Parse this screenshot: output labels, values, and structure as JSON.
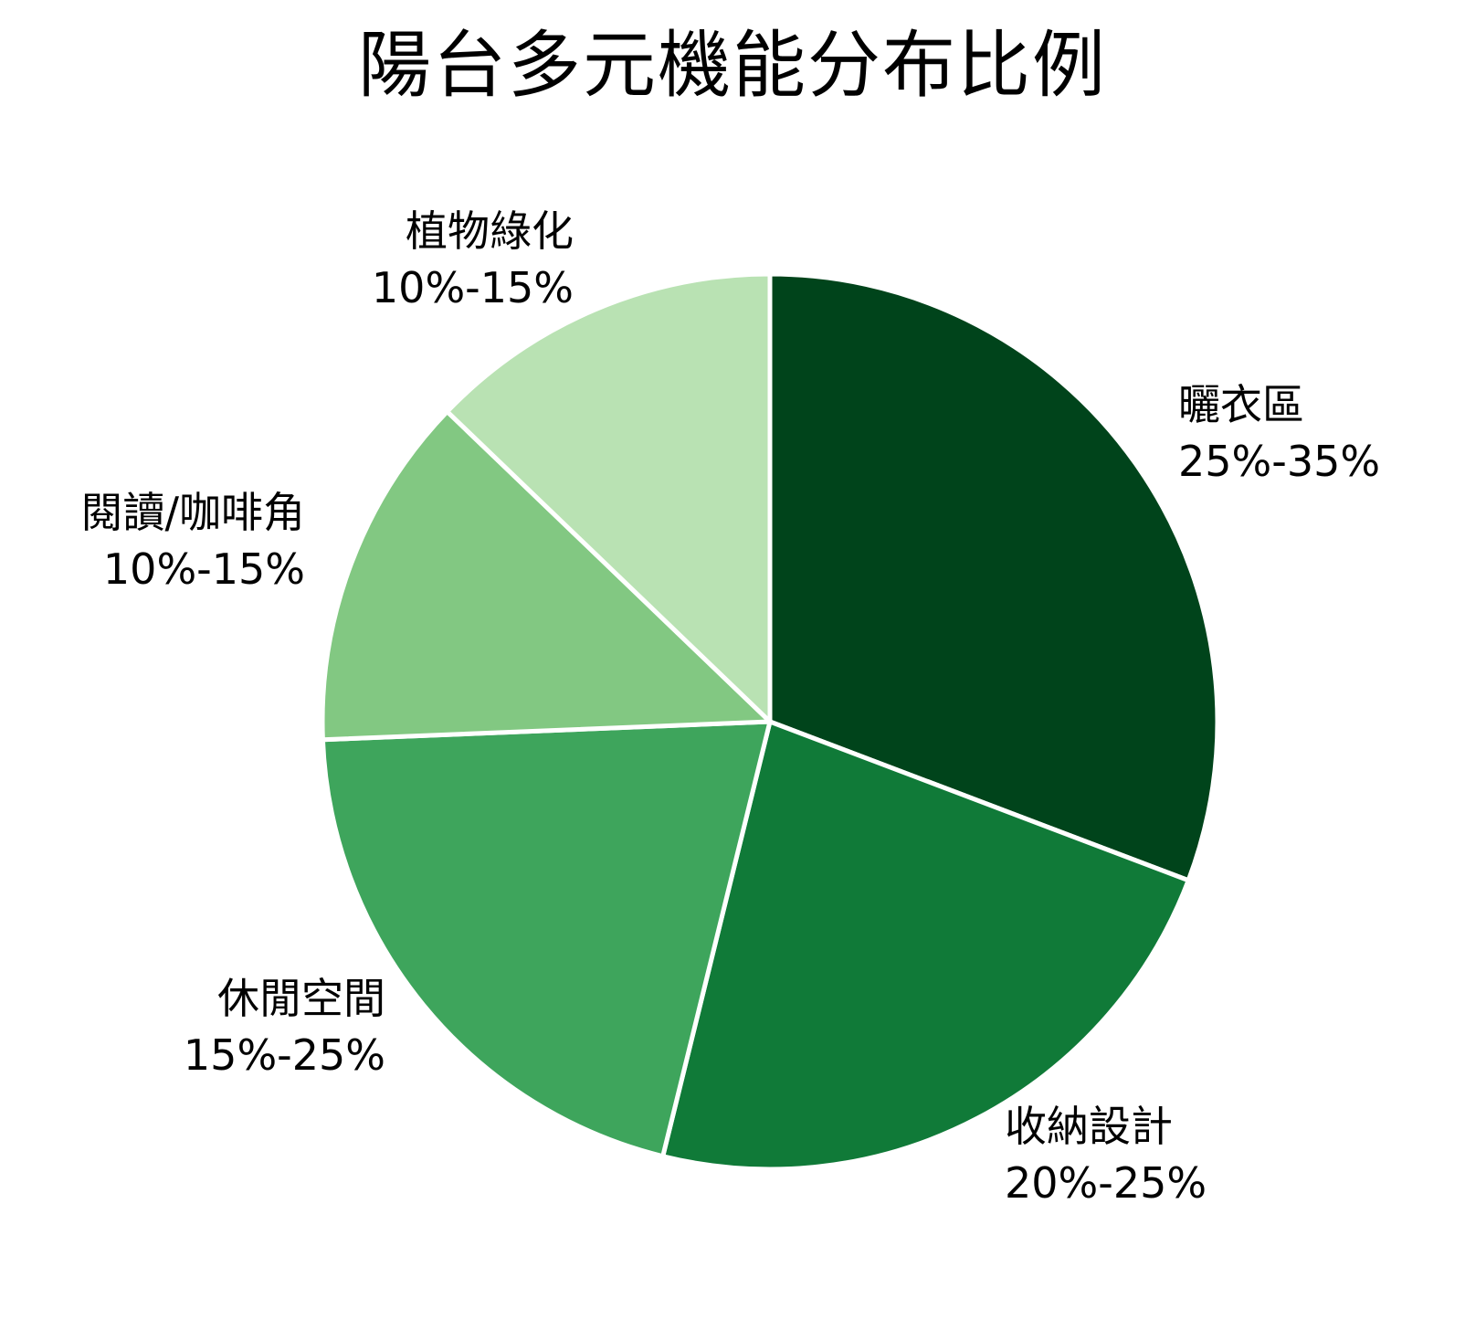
{
  "title": "陽台多元機能分布比例",
  "chart_data": {
    "type": "pie",
    "title": "陽台多元機能分布比例",
    "categories": [
      "曬衣區",
      "收納設計",
      "休閒空間",
      "閱讀/咖啡角",
      "植物綠化"
    ],
    "range_labels": [
      "25%-35%",
      "20%-25%",
      "15%-25%",
      "10%-15%",
      "10%-15%"
    ],
    "values": [
      30,
      22.5,
      20,
      12.5,
      12.5
    ],
    "start_angle_deg": 0,
    "direction": "clockwise",
    "colors": [
      "#00441b",
      "#107a38",
      "#3ea55c",
      "#82c882",
      "#b9e2b3"
    ],
    "legend": "none (labels placed outside slices)"
  },
  "slices": [
    {
      "name": "曬衣區",
      "pct": "25%-35%",
      "color": "#00441b"
    },
    {
      "name": "收納設計",
      "pct": "20%-25%",
      "color": "#107a38"
    },
    {
      "name": "休閒空間",
      "pct": "15%-25%",
      "color": "#3ea55c"
    },
    {
      "name": "閱讀/咖啡角",
      "pct": "10%-15%",
      "color": "#82c882"
    },
    {
      "name": "植物綠化",
      "pct": "10%-15%",
      "color": "#b9e2b3"
    }
  ]
}
